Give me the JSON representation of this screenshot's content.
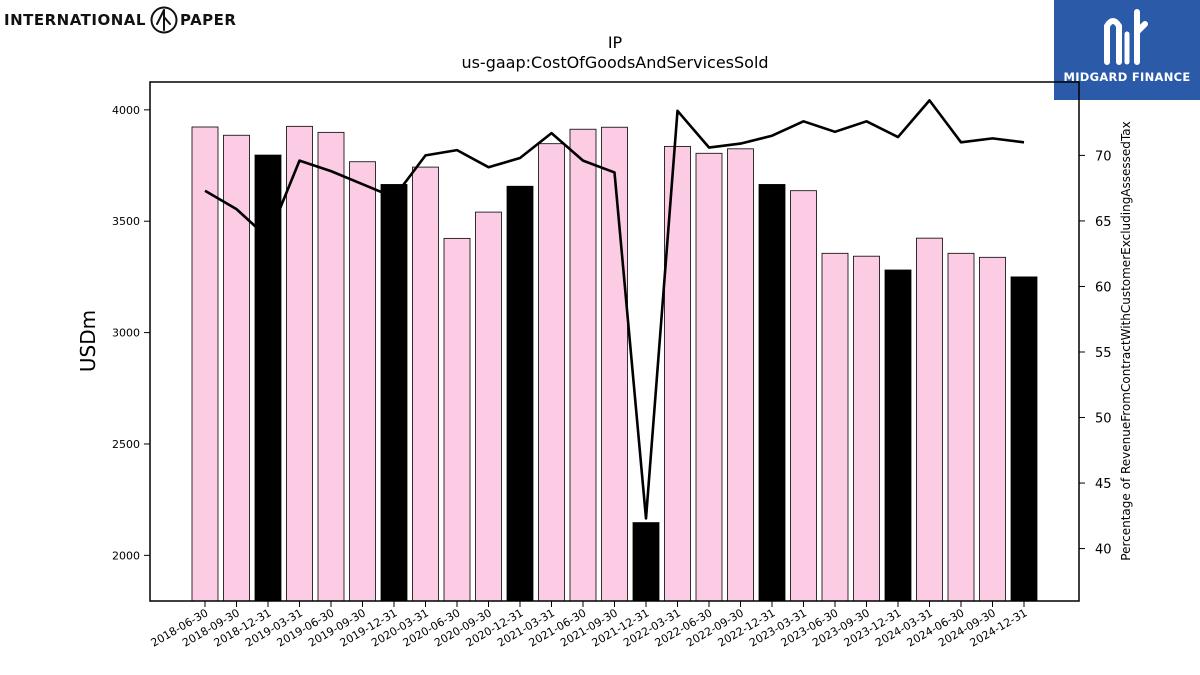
{
  "logos": {
    "left_word_1": "INTERNATIONAL",
    "left_word_2": "PAPER",
    "right_name": "MIDGARD FINANCE"
  },
  "colors": {
    "bar_pink": "#fccbe4",
    "bar_black": "#000000",
    "line": "#000000",
    "brand_blue": "#2b5aa8"
  },
  "chart_data": {
    "type": "bar",
    "title": "IP",
    "subtitle": "us-gaap:CostOfGoodsAndServicesSold",
    "ylabel": "USDm",
    "y2label": "Percentage of RevenueFromContractWithCustomerExcludingAssessedTax",
    "ylim": [
      1795,
      4125
    ],
    "y2lim": [
      36,
      75.6
    ],
    "yticks": [
      2000,
      2500,
      3000,
      3500,
      4000
    ],
    "y2ticks": [
      40,
      45,
      50,
      55,
      60,
      65,
      70
    ],
    "categories": [
      "2018-06-30",
      "2018-09-30",
      "2018-12-31",
      "2019-03-31",
      "2019-06-30",
      "2019-09-30",
      "2019-12-31",
      "2020-03-31",
      "2020-06-30",
      "2020-09-30",
      "2020-12-31",
      "2021-03-31",
      "2021-06-30",
      "2021-09-30",
      "2021-12-31",
      "2022-03-31",
      "2022-06-30",
      "2022-09-30",
      "2022-12-31",
      "2023-03-31",
      "2023-06-30",
      "2023-09-30",
      "2023-12-31",
      "2024-03-31",
      "2024-06-30",
      "2024-09-30",
      "2024-12-31"
    ],
    "series": [
      {
        "type": "bar",
        "values": [
          3923,
          3886,
          3797,
          3926,
          3899,
          3767,
          3665,
          3743,
          3423,
          3541,
          3657,
          3848,
          3913,
          3922,
          2147,
          3836,
          3805,
          3825,
          3665,
          3637,
          3356,
          3343,
          3281,
          3424,
          3356,
          3338,
          3250
        ],
        "colors": [
          "#fccbe4",
          "#fccbe4",
          "#000000",
          "#fccbe4",
          "#fccbe4",
          "#fccbe4",
          "#000000",
          "#fccbe4",
          "#fccbe4",
          "#fccbe4",
          "#000000",
          "#fccbe4",
          "#fccbe4",
          "#fccbe4",
          "#000000",
          "#fccbe4",
          "#fccbe4",
          "#fccbe4",
          "#000000",
          "#fccbe4",
          "#fccbe4",
          "#fccbe4",
          "#000000",
          "#fccbe4",
          "#fccbe4",
          "#fccbe4",
          "#000000"
        ]
      },
      {
        "type": "line",
        "axis": "right",
        "values": [
          67.3,
          65.9,
          63.7,
          69.6,
          68.8,
          67.8,
          66.8,
          70.0,
          70.4,
          69.1,
          69.8,
          71.7,
          69.6,
          68.7,
          42.3,
          73.4,
          70.6,
          70.9,
          71.5,
          72.6,
          71.8,
          72.6,
          71.4,
          74.2,
          71.0,
          71.3,
          71.0
        ]
      }
    ],
    "grid": false,
    "legend": "none"
  }
}
